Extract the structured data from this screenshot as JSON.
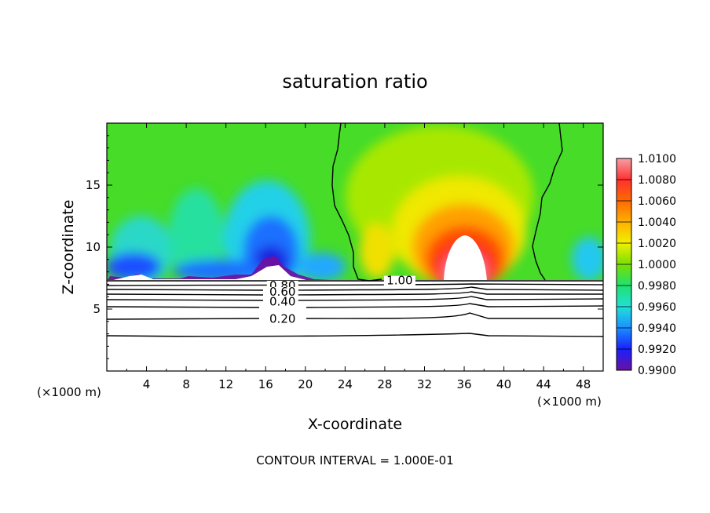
{
  "chart_data": {
    "type": "heatmap",
    "title": "saturation ratio",
    "xlabel": "X-coordinate",
    "ylabel": "Z-coordinate",
    "x_unit": "(×1000 m)",
    "x_unit_right": "(×1000 m)",
    "xlim": [
      0,
      50
    ],
    "ylim": [
      0,
      20
    ],
    "x_ticks": [
      "4",
      "8",
      "12",
      "16",
      "20",
      "24",
      "28",
      "32",
      "36",
      "40",
      "44",
      "48"
    ],
    "y_ticks": [
      "5",
      "10",
      "15"
    ],
    "footer": "CONTOUR INTERVAL = 1.000E-01",
    "colorbar": {
      "min": 0.99,
      "max": 1.01,
      "labels": [
        "1.0100",
        "1.0080",
        "1.0060",
        "1.0040",
        "1.0020",
        "1.0000",
        "0.9980",
        "0.9960",
        "0.9940",
        "0.9920",
        "0.9900"
      ]
    },
    "contour_labels": [
      {
        "text": "0.80",
        "x": 17.7,
        "y": 6.9
      },
      {
        "text": "0.60",
        "x": 17.7,
        "y": 6.4
      },
      {
        "text": "0.40",
        "x": 17.7,
        "y": 5.6
      },
      {
        "text": "0.20",
        "x": 17.7,
        "y": 4.2
      },
      {
        "text": "1.00",
        "x": 29.5,
        "y": 7.3
      }
    ],
    "features": {
      "cloud_base_z": 7.3,
      "ice_supersaturated_max_center": [
        35.8,
        8.0
      ],
      "subsaturated_min_center": [
        16.7,
        8.0
      ]
    }
  }
}
